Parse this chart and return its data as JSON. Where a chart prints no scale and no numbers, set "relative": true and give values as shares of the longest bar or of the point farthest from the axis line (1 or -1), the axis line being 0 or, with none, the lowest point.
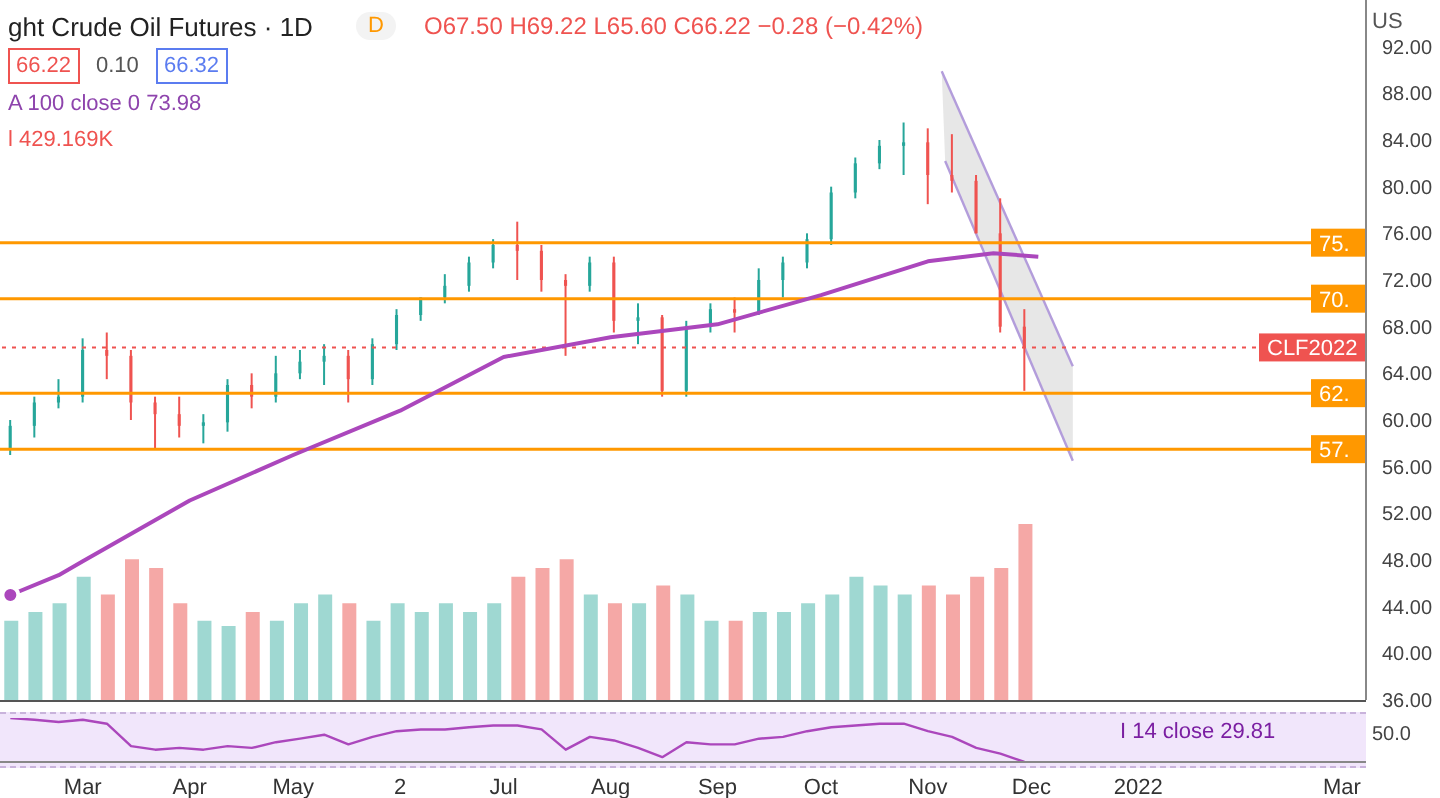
{
  "chart_data": [
    {
      "type": "candlestick",
      "title": "ght Crude Oil Futures · 1D",
      "annotations": [
        "D",
        "O67.50 H69.22 L65.60 C66.22 −0.28 (−0.42%)",
        "66.22",
        "0.10",
        "66.32",
        "A 100 close 0 73.98",
        "l 429.169K",
        "US"
      ],
      "x": [
        "2021-02-08",
        "2021-02-15",
        "2021-02-22",
        "2021-03-01",
        "2021-03-08",
        "2021-03-15",
        "2021-03-22",
        "2021-03-29",
        "2021-04-05",
        "2021-04-12",
        "2021-04-19",
        "2021-04-26",
        "2021-05-03",
        "2021-05-10",
        "2021-05-17",
        "2021-05-24",
        "2021-05-31",
        "2021-06-07",
        "2021-06-14",
        "2021-06-21",
        "2021-06-28",
        "2021-07-05",
        "2021-07-12",
        "2021-07-19",
        "2021-07-26",
        "2021-08-02",
        "2021-08-09",
        "2021-08-16",
        "2021-08-23",
        "2021-08-30",
        "2021-09-06",
        "2021-09-13",
        "2021-09-20",
        "2021-09-27",
        "2021-10-04",
        "2021-10-11",
        "2021-10-18",
        "2021-10-25",
        "2021-11-01",
        "2021-11-08",
        "2021-11-15",
        "2021-11-22",
        "2021-11-29"
      ],
      "ohlc": [
        [
          57.5,
          60,
          57,
          59.5
        ],
        [
          59.5,
          62,
          58.5,
          61.5
        ],
        [
          61.5,
          63.5,
          61,
          62
        ],
        [
          62,
          67,
          61.5,
          66
        ],
        [
          66,
          67.5,
          63.5,
          65.5
        ],
        [
          65.5,
          66,
          60,
          61.5
        ],
        [
          61.5,
          62,
          57.5,
          60.5
        ],
        [
          60.5,
          62,
          58.5,
          59.5
        ],
        [
          59.5,
          60.5,
          58,
          59.8
        ],
        [
          59.8,
          63.5,
          59,
          63
        ],
        [
          63,
          64,
          61,
          62
        ],
        [
          62,
          65.5,
          61.5,
          64
        ],
        [
          64,
          66,
          63.5,
          65
        ],
        [
          65,
          66.5,
          63,
          65.5
        ],
        [
          65.5,
          66,
          61.5,
          63.5
        ],
        [
          63.5,
          67,
          63,
          66.5
        ],
        [
          66.5,
          69.5,
          66,
          69
        ],
        [
          69,
          70.5,
          68.5,
          70.5
        ],
        [
          70.5,
          72.5,
          70,
          71.5
        ],
        [
          71.5,
          74,
          71,
          73.5
        ],
        [
          73.5,
          75.5,
          73,
          75
        ],
        [
          75,
          77,
          72,
          74.5
        ],
        [
          74.5,
          75,
          71,
          72
        ],
        [
          72,
          72.5,
          65.5,
          71.5
        ],
        [
          71.5,
          74,
          71,
          73.5
        ],
        [
          73.5,
          74,
          67.5,
          68.5
        ],
        [
          68.5,
          70,
          66.5,
          68.8
        ],
        [
          68.8,
          69,
          62,
          62.5
        ],
        [
          62.5,
          68.5,
          62,
          68
        ],
        [
          68,
          70,
          67.5,
          69.5
        ],
        [
          69.5,
          70.5,
          67.5,
          69.2
        ],
        [
          69.2,
          73,
          69,
          72
        ],
        [
          72,
          74,
          70.5,
          73.5
        ],
        [
          73.5,
          76,
          73,
          75.5
        ],
        [
          75.5,
          80,
          75,
          79.5
        ],
        [
          79.5,
          82.5,
          79,
          82
        ],
        [
          82,
          84,
          81.5,
          83.5
        ],
        [
          83.5,
          85.5,
          81,
          83.8
        ],
        [
          83.8,
          85,
          78.5,
          81
        ],
        [
          81,
          84.5,
          79.5,
          80.5
        ],
        [
          80.5,
          81,
          76,
          76
        ],
        [
          76,
          79,
          67.5,
          68
        ],
        [
          68,
          69.5,
          62.5,
          66.22
        ]
      ],
      "colors": [
        "#26a69a",
        "#26a69a",
        "#26a69a",
        "#26a69a",
        "#ef5350",
        "#ef5350",
        "#ef5350",
        "#ef5350",
        "#26a69a",
        "#26a69a",
        "#ef5350",
        "#26a69a",
        "#26a69a",
        "#26a69a",
        "#ef5350",
        "#26a69a",
        "#26a69a",
        "#26a69a",
        "#26a69a",
        "#26a69a",
        "#26a69a",
        "#ef5350",
        "#ef5350",
        "#ef5350",
        "#26a69a",
        "#ef5350",
        "#26a69a",
        "#ef5350",
        "#26a69a",
        "#26a69a",
        "#ef5350",
        "#26a69a",
        "#26a69a",
        "#26a69a",
        "#26a69a",
        "#26a69a",
        "#26a69a",
        "#26a69a",
        "#ef5350",
        "#ef5350",
        "#ef5350",
        "#ef5350",
        "#ef5350"
      ],
      "series": [
        {
          "type": "line",
          "color": "#ab47bc",
          "x": [
            "2021-02-08",
            "2021-02-22",
            "2021-03-01",
            "2021-04-01",
            "2021-05-01",
            "2021-06-01",
            "2021-07-01",
            "2021-08-01",
            "2021-09-01",
            "2021-10-01",
            "2021-11-01",
            "2021-11-20",
            "2021-12-03"
          ],
          "values": [
            45.0,
            46.7,
            47.9,
            53.1,
            57.0,
            60.8,
            65.4,
            67.1,
            68.2,
            70.7,
            73.6,
            74.3,
            74.0
          ]
        }
      ],
      "xlim": [
        "2021-02-05",
        "2022-03-08"
      ],
      "ylim": [
        36,
        96
      ],
      "yticks": [
        {
          "value": 36,
          "label": "36.00"
        },
        {
          "value": 40,
          "label": "40.00"
        },
        {
          "value": 44,
          "label": "44.00"
        },
        {
          "value": 48,
          "label": "48.00"
        },
        {
          "value": 52,
          "label": "52.00"
        },
        {
          "value": 56,
          "label": "56.00"
        },
        {
          "value": 60,
          "label": "60.00"
        },
        {
          "value": 64,
          "label": "64.00"
        },
        {
          "value": 68,
          "label": "68.00"
        },
        {
          "value": 72,
          "label": "72.00"
        },
        {
          "value": 76,
          "label": "76.00"
        },
        {
          "value": 80,
          "label": "80.00"
        },
        {
          "value": 84,
          "label": "84.00"
        },
        {
          "value": 88,
          "label": "88.00"
        },
        {
          "value": 92,
          "label": "92.00"
        }
      ],
      "ref_lines": [
        {
          "axis": "y",
          "value": 75.2,
          "label": "75.",
          "color": "#ff9800"
        },
        {
          "axis": "y",
          "value": 70.4,
          "label": "70.",
          "color": "#ff9800"
        },
        {
          "axis": "y",
          "value": 62.3,
          "label": "62.",
          "color": "#ff9800"
        },
        {
          "axis": "y",
          "value": 57.5,
          "label": "57.",
          "color": "#ff9800"
        },
        {
          "axis": "y",
          "value": 66.22,
          "label": "CLF2022",
          "color": "#ef5350",
          "line_style": "dotted"
        }
      ],
      "tick_labels": "y",
      "marker": "none",
      "legend": false,
      "grid": false
    },
    {
      "type": "bar",
      "relative": true,
      "x": [
        "2021-02-08",
        "2021-02-15",
        "2021-02-22",
        "2021-03-01",
        "2021-03-08",
        "2021-03-15",
        "2021-03-22",
        "2021-03-29",
        "2021-04-05",
        "2021-04-12",
        "2021-04-19",
        "2021-04-26",
        "2021-05-03",
        "2021-05-10",
        "2021-05-17",
        "2021-05-24",
        "2021-05-31",
        "2021-06-07",
        "2021-06-14",
        "2021-06-21",
        "2021-06-28",
        "2021-07-05",
        "2021-07-12",
        "2021-07-19",
        "2021-07-26",
        "2021-08-02",
        "2021-08-09",
        "2021-08-16",
        "2021-08-23",
        "2021-08-30",
        "2021-09-06",
        "2021-09-13",
        "2021-09-20",
        "2021-09-27",
        "2021-10-04",
        "2021-10-11",
        "2021-10-18",
        "2021-10-25",
        "2021-11-01",
        "2021-11-08",
        "2021-11-15",
        "2021-11-22",
        "2021-11-29"
      ],
      "values": [
        0.45,
        0.5,
        0.55,
        0.7,
        0.6,
        0.8,
        0.75,
        0.55,
        0.45,
        0.42,
        0.5,
        0.45,
        0.55,
        0.6,
        0.55,
        0.45,
        0.55,
        0.5,
        0.55,
        0.5,
        0.55,
        0.7,
        0.75,
        0.8,
        0.6,
        0.55,
        0.55,
        0.65,
        0.6,
        0.45,
        0.45,
        0.5,
        0.5,
        0.55,
        0.6,
        0.7,
        0.65,
        0.6,
        0.65,
        0.6,
        0.7,
        0.75,
        1
      ],
      "colors": [
        "#9fd8d2",
        "#9fd8d2",
        "#9fd8d2",
        "#9fd8d2",
        "#f5a8a6",
        "#f5a8a6",
        "#f5a8a6",
        "#f5a8a6",
        "#9fd8d2",
        "#9fd8d2",
        "#f5a8a6",
        "#9fd8d2",
        "#9fd8d2",
        "#9fd8d2",
        "#f5a8a6",
        "#9fd8d2",
        "#9fd8d2",
        "#9fd8d2",
        "#9fd8d2",
        "#9fd8d2",
        "#9fd8d2",
        "#f5a8a6",
        "#f5a8a6",
        "#f5a8a6",
        "#9fd8d2",
        "#f5a8a6",
        "#9fd8d2",
        "#f5a8a6",
        "#9fd8d2",
        "#9fd8d2",
        "#f5a8a6",
        "#9fd8d2",
        "#9fd8d2",
        "#9fd8d2",
        "#9fd8d2",
        "#9fd8d2",
        "#9fd8d2",
        "#9fd8d2",
        "#f5a8a6",
        "#f5a8a6",
        "#f5a8a6",
        "#f5a8a6",
        "#f5a8a6"
      ],
      "xlim": [
        "2021-02-05",
        "2022-03-08"
      ],
      "tick_labels": false
    },
    {
      "type": "line",
      "relative": true,
      "annotations": [
        "I 14 close 29.81",
        "50.0"
      ],
      "color": "#ab47bc",
      "x": [
        "2021-02-08",
        "2021-02-15",
        "2021-02-22",
        "2021-03-01",
        "2021-03-08",
        "2021-03-15",
        "2021-03-22",
        "2021-03-29",
        "2021-04-05",
        "2021-04-12",
        "2021-04-19",
        "2021-04-26",
        "2021-05-03",
        "2021-05-10",
        "2021-05-17",
        "2021-05-24",
        "2021-05-31",
        "2021-06-07",
        "2021-06-14",
        "2021-06-21",
        "2021-06-28",
        "2021-07-05",
        "2021-07-12",
        "2021-07-19",
        "2021-07-26",
        "2021-08-02",
        "2021-08-09",
        "2021-08-16",
        "2021-08-23",
        "2021-08-30",
        "2021-09-06",
        "2021-09-13",
        "2021-09-20",
        "2021-09-27",
        "2021-10-04",
        "2021-10-11",
        "2021-10-18",
        "2021-10-25",
        "2021-11-01",
        "2021-11-08",
        "2021-11-15",
        "2021-11-22",
        "2021-11-29"
      ],
      "values": [
        1,
        0.96,
        0.91,
        0.96,
        0.87,
        0.36,
        0.28,
        0.32,
        0.28,
        0.36,
        0.32,
        0.45,
        0.53,
        0.62,
        0.4,
        0.57,
        0.7,
        0.74,
        0.74,
        0.79,
        0.83,
        0.83,
        0.74,
        0.28,
        0.57,
        0.49,
        0.32,
        0.11,
        0.45,
        0.4,
        0.4,
        0.53,
        0.57,
        0.7,
        0.79,
        0.83,
        0.87,
        0.87,
        0.7,
        0.57,
        0.32,
        0.19,
        0
      ],
      "xlim": [
        "2021-02-05",
        "2022-03-08"
      ],
      "xticks": [
        {
          "value": "2021-03-01",
          "label": "Mar"
        },
        {
          "value": "2021-04-01",
          "label": "Apr"
        },
        {
          "value": "2021-05-01",
          "label": "May"
        },
        {
          "value": "2021-06-01",
          "label": "2"
        },
        {
          "value": "2021-07-01",
          "label": "Jul"
        },
        {
          "value": "2021-08-01",
          "label": "Aug"
        },
        {
          "value": "2021-09-01",
          "label": "Sep"
        },
        {
          "value": "2021-10-01",
          "label": "Oct"
        },
        {
          "value": "2021-11-01",
          "label": "Nov"
        },
        {
          "value": "2021-12-01",
          "label": "Dec"
        },
        {
          "value": "2022-01-01",
          "label": "2022"
        },
        {
          "value": "2022-03-01",
          "label": "Mar"
        }
      ],
      "tick_labels": "x",
      "marker": "none"
    }
  ]
}
